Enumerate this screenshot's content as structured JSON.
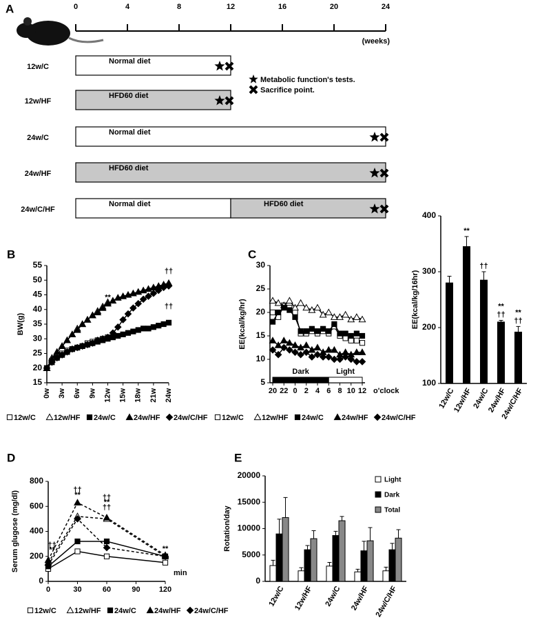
{
  "panel_a": {
    "label": "A",
    "ticks": [
      0,
      4,
      8,
      12,
      16,
      20,
      24
    ],
    "xlim": [
      0,
      24
    ],
    "unit": "(weeks)",
    "rows": [
      {
        "label": "12w/C",
        "end": 12,
        "segments": [
          {
            "text": "Normal diet",
            "from": 0,
            "to": 12,
            "color": "#ffffff"
          }
        ]
      },
      {
        "label": "12w/HF",
        "end": 12,
        "segments": [
          {
            "text": "HFD60 diet",
            "from": 0,
            "to": 12,
            "color": "#c8c8c8"
          }
        ]
      },
      {
        "label": "24w/C",
        "end": 24,
        "segments": [
          {
            "text": "Normal diet",
            "from": 0,
            "to": 24,
            "color": "#ffffff"
          }
        ]
      },
      {
        "label": "24w/HF",
        "end": 24,
        "segments": [
          {
            "text": "HFD60 diet",
            "from": 0,
            "to": 24,
            "color": "#c8c8c8"
          }
        ]
      },
      {
        "label": "24w/C/HF",
        "end": 24,
        "segments": [
          {
            "text": "Normal diet",
            "from": 0,
            "to": 12,
            "color": "#ffffff"
          },
          {
            "text": "HFD60 diet",
            "from": 12,
            "to": 24,
            "color": "#c8c8c8"
          }
        ]
      }
    ],
    "legend": {
      "tests": "Metabolic function's tests.",
      "sacrifice": "Sacrifice point."
    }
  },
  "chart_data": [
    {
      "type": "line",
      "panel": "B",
      "ylabel": "BW(g)",
      "ylim": [
        15,
        55
      ],
      "yticks": [
        15,
        20,
        25,
        30,
        35,
        40,
        45,
        50,
        55
      ],
      "xlim": [
        0,
        24
      ],
      "x": [
        0,
        1,
        2,
        3,
        4,
        5,
        6,
        7,
        8,
        9,
        10,
        11,
        12,
        13,
        14,
        15,
        16,
        17,
        18,
        19,
        20,
        21,
        22,
        23,
        24
      ],
      "xticks": [
        {
          "value": 0,
          "label": "0w"
        },
        {
          "value": 3,
          "label": "3w"
        },
        {
          "value": 6,
          "label": "6w"
        },
        {
          "value": 9,
          "label": "9w"
        },
        {
          "value": 12,
          "label": "12w"
        },
        {
          "value": 15,
          "label": "15w"
        },
        {
          "value": 18,
          "label": "18w"
        },
        {
          "value": 21,
          "label": "21w"
        },
        {
          "value": 24,
          "label": "24w"
        }
      ],
      "series": [
        {
          "name": "12w/C",
          "color": "#000000",
          "marker": "open-square",
          "values": [
            20,
            22.5,
            24,
            25,
            26,
            26.5,
            27,
            27.5,
            28.5,
            29,
            29.5,
            30,
            30.5,
            null,
            null,
            null,
            null,
            null,
            null,
            null,
            null,
            null,
            null,
            null,
            null
          ]
        },
        {
          "name": "12w/HF",
          "color": "#000000",
          "marker": "open-triangle",
          "values": [
            20,
            23.5,
            25.5,
            27.5,
            29.5,
            31.5,
            33.5,
            35,
            36.5,
            38,
            39.5,
            41,
            42.5,
            null,
            null,
            null,
            null,
            null,
            null,
            null,
            null,
            null,
            null,
            null,
            null
          ]
        },
        {
          "name": "24w/C",
          "color": "#000000",
          "marker": "square",
          "values": [
            20,
            22,
            23.5,
            24.5,
            25.5,
            26.5,
            27,
            27.5,
            28,
            28.5,
            29,
            29.5,
            30,
            30.5,
            31,
            31.5,
            32,
            32.5,
            33,
            33.5,
            33.5,
            34,
            34.5,
            35,
            35.5
          ]
        },
        {
          "name": "24w/HF",
          "color": "#000000",
          "marker": "triangle",
          "values": [
            20,
            23,
            25.5,
            27.5,
            29.5,
            31.5,
            33,
            35,
            36.5,
            38,
            39,
            40.5,
            42,
            43,
            44,
            44.5,
            45,
            45.5,
            46,
            46.5,
            47,
            47.5,
            48,
            48.5,
            49
          ]
        },
        {
          "name": "24w/C/HF",
          "color": "#000000",
          "marker": "diamond",
          "values": [
            20,
            22,
            23.5,
            24.5,
            25.5,
            26.5,
            27,
            27.5,
            28,
            28.5,
            29.5,
            30,
            30.5,
            32,
            34,
            36.5,
            38.5,
            40.5,
            42,
            43.5,
            44.5,
            45.5,
            46.5,
            47.5,
            48
          ]
        }
      ],
      "annotations": [
        {
          "text": "**",
          "x": 12,
          "y": 44
        },
        {
          "text": "††",
          "x": 24,
          "y": 53
        },
        {
          "text": "††",
          "x": 24,
          "y": 41
        }
      ]
    },
    {
      "type": "line",
      "panel": "C",
      "ylabel": "EE(kcal/kg/hr)",
      "xlabel": "o'clock",
      "ylim": [
        5,
        30
      ],
      "yticks": [
        5,
        10,
        15,
        20,
        25,
        30
      ],
      "categories": [
        "20",
        null,
        "22",
        null,
        "0",
        null,
        "2",
        null,
        "4",
        null,
        "6",
        null,
        "8",
        null,
        "10",
        null,
        "12"
      ],
      "bands": [
        {
          "label": "Dark",
          "from": 0,
          "to": 10,
          "color": "#000000"
        },
        {
          "label": "Light",
          "from": 10,
          "to": 16,
          "color": "#ffffff"
        }
      ],
      "series": [
        {
          "name": "12w/C",
          "color": "#000000",
          "marker": "open-square",
          "values": [
            20,
            19,
            21.5,
            21,
            20,
            15.5,
            15.5,
            16,
            15.5,
            16,
            15.5,
            17,
            15,
            14.5,
            14,
            14,
            13.5
          ]
        },
        {
          "name": "12w/HF",
          "color": "#000000",
          "marker": "open-triangle",
          "values": [
            22.5,
            22,
            21.5,
            22.5,
            21,
            22,
            21,
            20.5,
            21,
            19.5,
            20,
            19,
            19,
            19.5,
            18.5,
            19,
            18.5
          ]
        },
        {
          "name": "24w/C",
          "color": "#000000",
          "marker": "square",
          "values": [
            18,
            20,
            21,
            20.5,
            19,
            16,
            16,
            16.5,
            16,
            16.5,
            16,
            17.5,
            15.5,
            15.5,
            15,
            15.5,
            15
          ]
        },
        {
          "name": "24w/HF",
          "color": "#000000",
          "marker": "triangle",
          "values": [
            14,
            13,
            14,
            13.5,
            13,
            12.5,
            13,
            12,
            12.5,
            11.5,
            12,
            12,
            11,
            11.5,
            11,
            11.5,
            11.5
          ]
        },
        {
          "name": "24w/C/HF",
          "color": "#000000",
          "marker": "diamond",
          "values": [
            12,
            11,
            12.5,
            12,
            11.5,
            11,
            11.5,
            10.5,
            11,
            10.5,
            10.5,
            10,
            10,
            10.5,
            10,
            9.5,
            9.5
          ]
        }
      ]
    },
    {
      "type": "bar",
      "ylabel": "EE(kcal/kg/16hr)",
      "ylim": [
        100,
        400
      ],
      "yticks": [
        100,
        200,
        300,
        400
      ],
      "color": "#000000",
      "categories": [
        "12w/C",
        "12w/HF",
        "24w/C",
        "24w/HF",
        "24w/C/HF"
      ],
      "values": [
        280,
        345,
        285,
        210,
        192
      ],
      "errors": [
        12,
        18,
        15,
        3,
        10
      ],
      "annotations": [
        [],
        [
          "**"
        ],
        [
          "††"
        ],
        [
          "††",
          "**"
        ],
        [
          "††",
          "**"
        ]
      ]
    },
    {
      "type": "line",
      "panel": "D",
      "ylabel": "Serum glugose (mg/dl)",
      "xlabel": "min",
      "ylim": [
        0,
        800
      ],
      "yticks": [
        0,
        200,
        400,
        600,
        800
      ],
      "xlim": [
        0,
        120
      ],
      "xticks": [
        0,
        30,
        60,
        90,
        120
      ],
      "x": [
        0,
        30,
        60,
        120
      ],
      "series": [
        {
          "name": "12w/C",
          "color": "#000000",
          "marker": "open-square",
          "dash": false,
          "values": [
            100,
            240,
            200,
            150
          ]
        },
        {
          "name": "12w/HF",
          "color": "#000000",
          "marker": "open-triangle",
          "dash": true,
          "values": [
            150,
            520,
            500,
            200
          ]
        },
        {
          "name": "24w/C",
          "color": "#000000",
          "marker": "square",
          "dash": false,
          "values": [
            120,
            320,
            320,
            200
          ]
        },
        {
          "name": "24w/HF",
          "color": "#000000",
          "marker": "triangle",
          "dash": true,
          "values": [
            170,
            630,
            510,
            210
          ]
        },
        {
          "name": "24w/C/HF",
          "color": "#000000",
          "marker": "diamond",
          "dash": true,
          "values": [
            130,
            500,
            270,
            200
          ]
        }
      ],
      "annotations": [
        {
          "text": "††",
          "x": 30,
          "y": 730
        },
        {
          "text": "**",
          "x": 30,
          "y": 690
        },
        {
          "text": "††",
          "x": 60,
          "y": 670
        },
        {
          "text": "**",
          "x": 60,
          "y": 630
        },
        {
          "text": "††",
          "x": 60,
          "y": 590
        },
        {
          "text": "††",
          "x": 4,
          "y": 290
        },
        {
          "text": "**",
          "x": 4,
          "y": 250
        },
        {
          "text": "**",
          "x": 120,
          "y": 260
        }
      ]
    },
    {
      "type": "bar",
      "panel": "E",
      "ylabel": "Rotation/day",
      "ylim": [
        0,
        20000
      ],
      "yticks": [
        0,
        5000,
        10000,
        15000,
        20000
      ],
      "legend": "upper right",
      "categories": [
        "12w/C",
        "12w/HF",
        "24w/C",
        "24w/HF",
        "24w/C/HF"
      ],
      "series": [
        {
          "name": "Light",
          "color": "#ffffff",
          "values": [
            3000,
            2000,
            2900,
            1800,
            2000
          ],
          "errors": [
            1000,
            600,
            700,
            500,
            700
          ]
        },
        {
          "name": "Dark",
          "color": "#000000",
          "values": [
            9000,
            6000,
            8700,
            5800,
            6000
          ],
          "errors": [
            2800,
            800,
            800,
            1800,
            1200
          ]
        },
        {
          "name": "Total",
          "color": "#888888",
          "values": [
            12100,
            8100,
            11500,
            7700,
            8200
          ],
          "errors": [
            3800,
            1500,
            800,
            2500,
            1600
          ]
        }
      ]
    }
  ]
}
